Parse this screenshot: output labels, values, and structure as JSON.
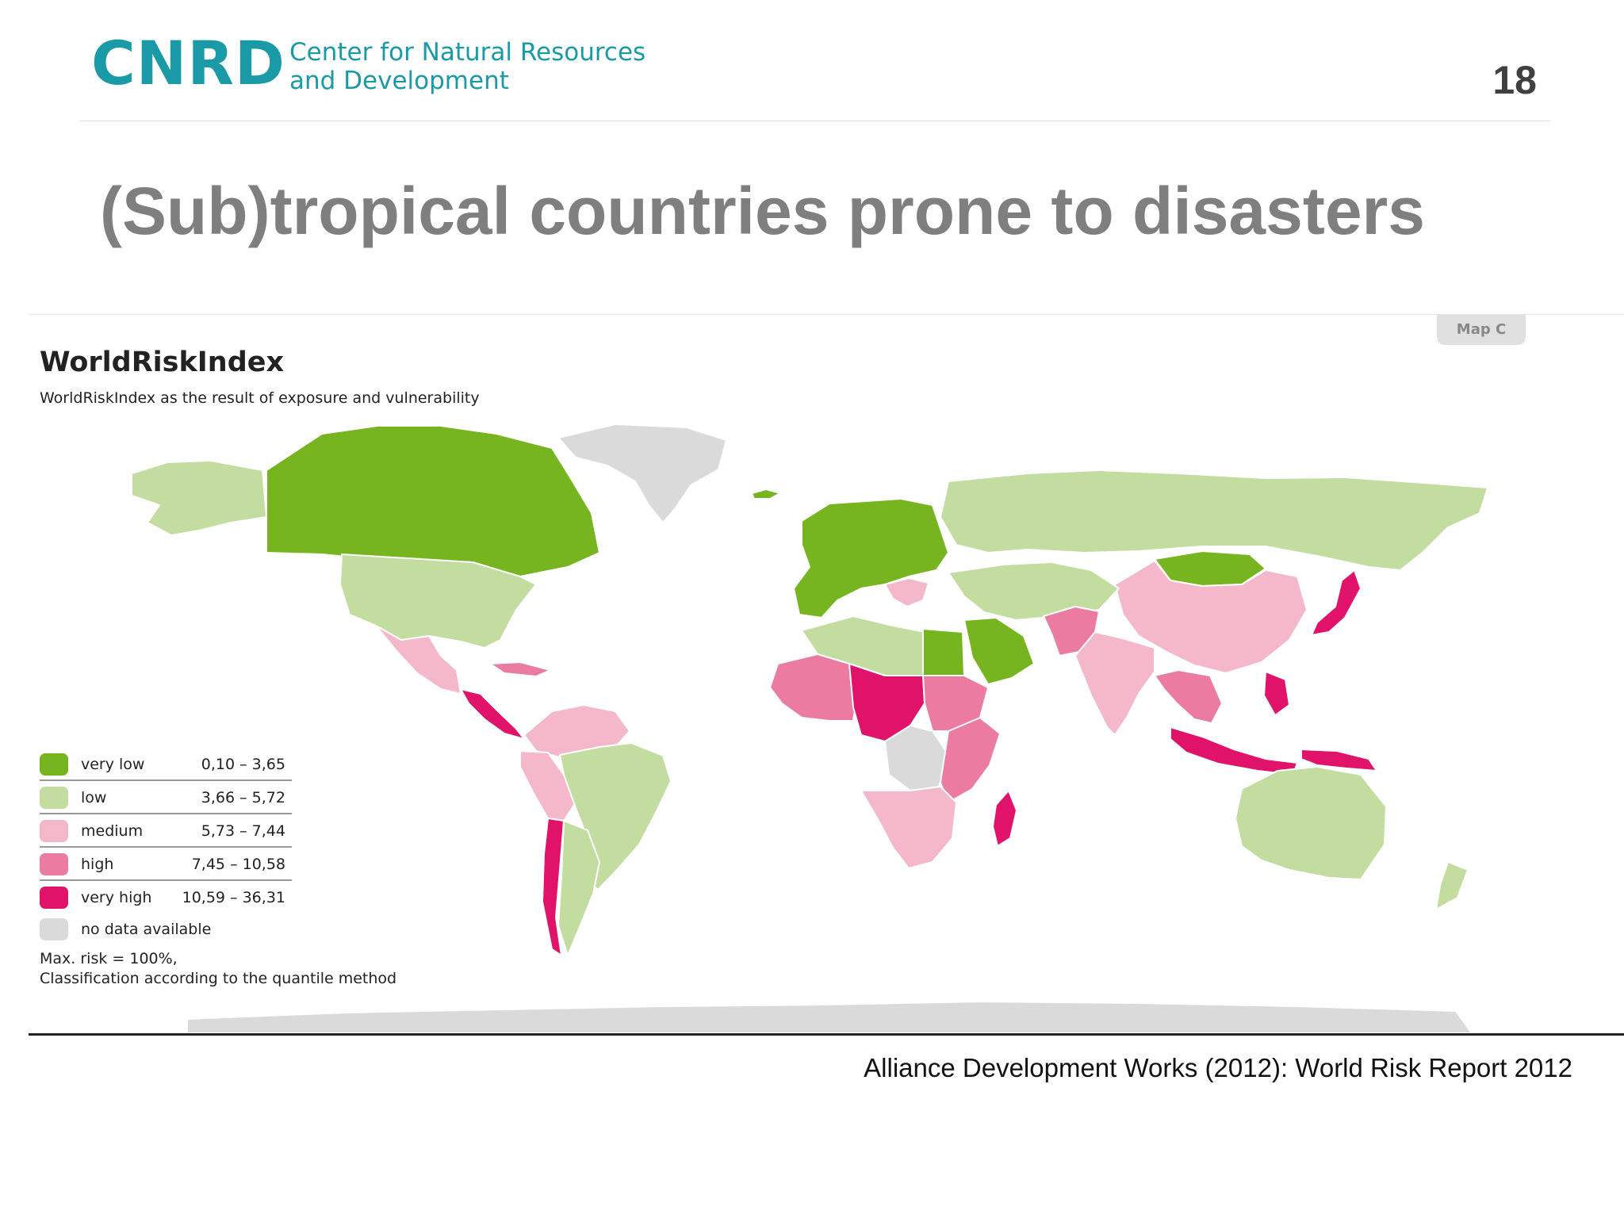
{
  "header": {
    "logo": "CNRD",
    "org_line1": "Center for Natural Resources",
    "org_line2": "and Development",
    "page_number": "18"
  },
  "title": "(Sub)tropical countries prone to disasters",
  "map": {
    "tag": "Map C",
    "title": "WorldRiskIndex",
    "subtitle": "WorldRiskIndex as the result of exposure and vulnerability",
    "legend": [
      {
        "label": "very low",
        "range": "0,10 –   3,65",
        "color": "#77b520"
      },
      {
        "label": "low",
        "range": "3,66 –   5,72",
        "color": "#c3dca0"
      },
      {
        "label": "medium",
        "range": "5,73 –   7,44",
        "color": "#f4b8ca"
      },
      {
        "label": "high",
        "range": "7,45 – 10,58",
        "color": "#eb7ba0"
      },
      {
        "label": "very high",
        "range": "10,59 – 36,31",
        "color": "#e0126a"
      },
      {
        "label": "no data available",
        "range": "",
        "color": "#dadadb"
      }
    ],
    "note_line1": "Max. risk = 100%,",
    "note_line2": "Classification according to the quantile method",
    "regions": [
      {
        "name": "greenland",
        "class": "no data available"
      },
      {
        "name": "alaska",
        "class": "low"
      },
      {
        "name": "canada",
        "class": "very low"
      },
      {
        "name": "usa",
        "class": "low"
      },
      {
        "name": "mexico",
        "class": "medium"
      },
      {
        "name": "central-america",
        "class": "very high"
      },
      {
        "name": "caribbean",
        "class": "high"
      },
      {
        "name": "northern-south-america",
        "class": "medium"
      },
      {
        "name": "peru",
        "class": "medium"
      },
      {
        "name": "brazil",
        "class": "low"
      },
      {
        "name": "chile",
        "class": "very high"
      },
      {
        "name": "argentina",
        "class": "low"
      },
      {
        "name": "iceland",
        "class": "very low"
      },
      {
        "name": "europe",
        "class": "very low"
      },
      {
        "name": "balkans",
        "class": "medium"
      },
      {
        "name": "russia",
        "class": "low"
      },
      {
        "name": "mongolia",
        "class": "very low"
      },
      {
        "name": "china",
        "class": "medium"
      },
      {
        "name": "japan",
        "class": "very high"
      },
      {
        "name": "central-asia",
        "class": "low"
      },
      {
        "name": "afghanistan-pakistan",
        "class": "high"
      },
      {
        "name": "india",
        "class": "medium"
      },
      {
        "name": "north-africa",
        "class": "low"
      },
      {
        "name": "egypt",
        "class": "very low"
      },
      {
        "name": "arabian-peninsula",
        "class": "very low"
      },
      {
        "name": "west-africa",
        "class": "high"
      },
      {
        "name": "sahel",
        "class": "very high"
      },
      {
        "name": "sudan",
        "class": "high"
      },
      {
        "name": "central-africa",
        "class": "no data available"
      },
      {
        "name": "east-africa",
        "class": "high"
      },
      {
        "name": "southern-africa",
        "class": "medium"
      },
      {
        "name": "madagascar",
        "class": "very high"
      },
      {
        "name": "southeast-asia",
        "class": "high"
      },
      {
        "name": "indonesia",
        "class": "very high"
      },
      {
        "name": "philippines",
        "class": "very high"
      },
      {
        "name": "papua",
        "class": "very high"
      },
      {
        "name": "australia",
        "class": "low"
      },
      {
        "name": "new-zealand",
        "class": "low"
      },
      {
        "name": "antarctica",
        "class": "no data available"
      }
    ]
  },
  "source": "Alliance Development Works (2012): World Risk Report 2012"
}
